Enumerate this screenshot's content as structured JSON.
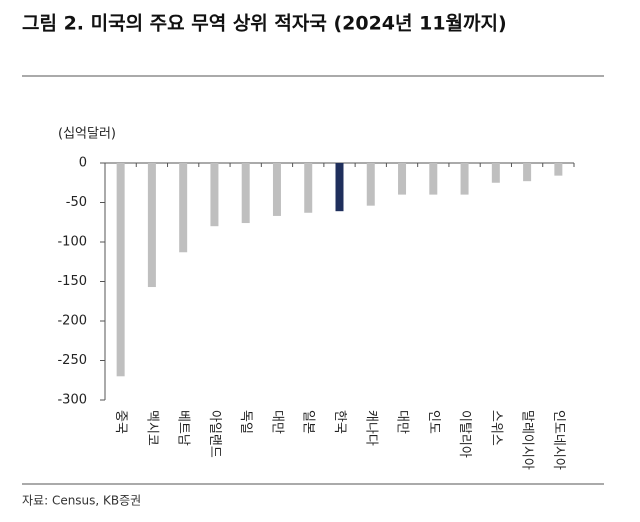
{
  "chart_data": {
    "type": "bar",
    "title": "그림 2. 미국의 주요 무역 상위 적자국 (2024년 11월까지)",
    "unit_label": "(십억달러)",
    "source": "자료: Census, KB증권",
    "categories": [
      "중국",
      "멕시코",
      "베트남",
      "아일랜드",
      "독일",
      "대만",
      "일본",
      "한국",
      "캐나다",
      "대만",
      "인도",
      "이탈리아",
      "스위스",
      "말레이시아",
      "인도네시아"
    ],
    "values": [
      -270,
      -157,
      -113,
      -80,
      -76,
      -67,
      -63,
      -61,
      -54,
      -40,
      -40,
      -40,
      -25,
      -23,
      -16
    ],
    "colors": [
      "#bfbfbf",
      "#bfbfbf",
      "#bfbfbf",
      "#bfbfbf",
      "#bfbfbf",
      "#bfbfbf",
      "#bfbfbf",
      "#1f2f5c",
      "#bfbfbf",
      "#bfbfbf",
      "#bfbfbf",
      "#bfbfbf",
      "#bfbfbf",
      "#bfbfbf",
      "#bfbfbf"
    ],
    "ylim": [
      -300,
      0
    ],
    "yticks": [
      0,
      -50,
      -100,
      -150,
      -200,
      -250,
      -300
    ]
  }
}
